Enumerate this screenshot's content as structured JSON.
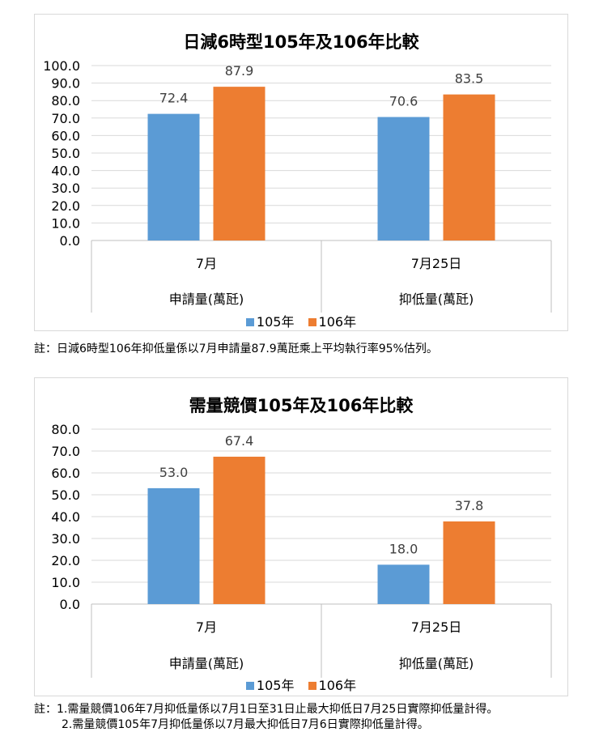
{
  "colors": {
    "series_105": "#5b9bd5",
    "series_106": "#ed7d31",
    "grid": "#d9d9d9",
    "axis": "#bfbfbf"
  },
  "chart_data": [
    {
      "type": "bar",
      "title": "日減6時型105年及106年比較",
      "categories": [
        "7月",
        "7月25日"
      ],
      "category_groups": [
        "申請量(萬瓩)",
        "抑低量(萬瓩)"
      ],
      "series": [
        {
          "name": "105年",
          "values": [
            72.4,
            70.6
          ]
        },
        {
          "name": "106年",
          "values": [
            87.9,
            83.5
          ]
        }
      ],
      "ylim": [
        0,
        100
      ],
      "yticks": [
        "0.0",
        "10.0",
        "20.0",
        "30.0",
        "40.0",
        "50.0",
        "60.0",
        "70.0",
        "80.0",
        "90.0",
        "100.0"
      ],
      "grid": true,
      "legend": "bottom"
    },
    {
      "type": "bar",
      "title": "需量競價105年及106年比較",
      "categories": [
        "7月",
        "7月25日"
      ],
      "category_groups": [
        "申請量(萬瓩)",
        "抑低量(萬瓩)"
      ],
      "series": [
        {
          "name": "105年",
          "values": [
            53.0,
            18.0
          ]
        },
        {
          "name": "106年",
          "values": [
            67.4,
            37.8
          ]
        }
      ],
      "ylim": [
        0,
        80
      ],
      "yticks": [
        "0.0",
        "10.0",
        "20.0",
        "30.0",
        "40.0",
        "50.0",
        "60.0",
        "70.0",
        "80.0"
      ],
      "grid": true,
      "legend": "bottom"
    }
  ],
  "notes": {
    "note1": "註：日減6時型106年抑低量係以7月申請量87.9萬瓩乘上平均執行率95%估列。",
    "note2_line1": "註：1.需量競價106年7月抑低量係以7月1日至31日止最大抑低日7月25日實際抑低量計得。",
    "note2_line2": "2.需量競價105年7月抑低量係以7月最大抑低日7月6日實際抑低量計得。"
  }
}
